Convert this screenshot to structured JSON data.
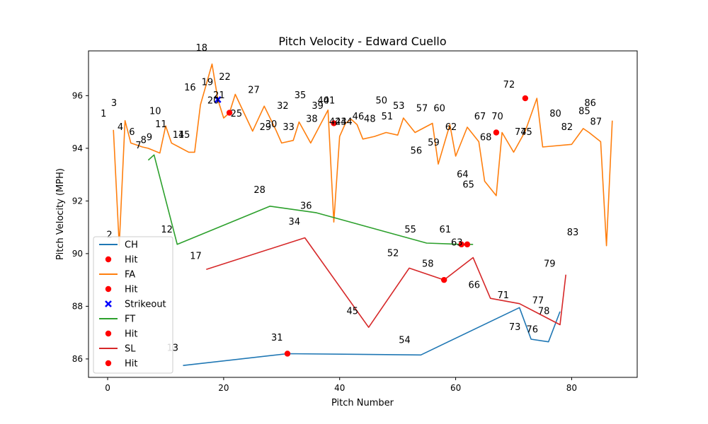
{
  "chart_data": {
    "type": "line",
    "title": "Pitch Velocity - Edward Cuello",
    "xlabel": "Pitch Number",
    "ylabel": "Pitch Velocity (MPH)",
    "xlim": [
      -3.3,
      91.3
    ],
    "ylim": [
      85.3,
      97.7
    ],
    "xticks": [
      0,
      20,
      40,
      60,
      80
    ],
    "yticks": [
      86,
      88,
      90,
      92,
      94,
      96
    ],
    "legend_position": "lower-left",
    "grid": false,
    "legend": [
      {
        "label": "CH",
        "kind": "line",
        "color": "#1f77b4"
      },
      {
        "label": "Hit",
        "kind": "dot",
        "color": "#ff0000"
      },
      {
        "label": "FA",
        "kind": "line",
        "color": "#ff7f0e"
      },
      {
        "label": "Hit",
        "kind": "dot",
        "color": "#ff0000"
      },
      {
        "label": "Strikeout",
        "kind": "x",
        "color": "#0000ff"
      },
      {
        "label": "FT",
        "kind": "line",
        "color": "#2ca02c"
      },
      {
        "label": "Hit",
        "kind": "dot",
        "color": "#ff0000"
      },
      {
        "label": "SL",
        "kind": "line",
        "color": "#d62728"
      },
      {
        "label": "Hit",
        "kind": "dot",
        "color": "#ff0000"
      }
    ],
    "series": [
      {
        "name": "CH",
        "color": "#1f77b4",
        "x": [
          13,
          31,
          54,
          71,
          73,
          76,
          78
        ],
        "y": [
          85.75,
          86.2,
          86.15,
          87.95,
          86.75,
          86.65,
          87.8
        ]
      },
      {
        "name": "FA",
        "color": "#ff7f0e",
        "x": [
          1,
          2,
          3,
          4,
          6,
          7,
          9,
          10,
          11,
          14,
          15,
          16,
          18,
          19,
          20,
          21,
          22,
          25,
          27,
          29,
          30,
          32,
          33,
          35,
          38,
          39,
          40,
          41,
          42,
          43,
          44,
          46,
          48,
          50,
          51,
          53,
          56,
          57,
          59,
          60,
          62,
          64,
          65,
          67,
          68,
          70,
          72,
          74,
          75,
          80,
          82,
          83,
          85,
          86,
          87
        ],
        "y": [
          94.7,
          90.3,
          95.05,
          94.2,
          94.05,
          94.0,
          93.82,
          94.85,
          94.2,
          93.85,
          93.85,
          95.65,
          97.2,
          95.85,
          95.15,
          95.35,
          96.05,
          94.65,
          95.6,
          94.7,
          94.2,
          94.3,
          95.0,
          94.2,
          95.45,
          91.2,
          94.45,
          94.95,
          95.1,
          94.9,
          94.35,
          94.45,
          94.6,
          94.5,
          95.15,
          94.6,
          94.95,
          93.4,
          94.9,
          93.7,
          94.8,
          94.25,
          92.75,
          92.2,
          94.6,
          93.85,
          94.65,
          95.9,
          94.05,
          94.15,
          94.75,
          94.6,
          94.25,
          90.3,
          95.05
        ]
      },
      {
        "name": "FT",
        "color": "#2ca02c",
        "x": [
          7,
          8,
          12,
          28,
          36,
          55,
          61,
          63
        ],
        "y": [
          93.55,
          93.75,
          90.35,
          91.8,
          91.55,
          90.4,
          90.35,
          90.35
        ]
      },
      {
        "name": "SL",
        "color": "#d62728",
        "x": [
          17,
          34,
          45,
          52,
          58,
          63,
          66,
          71,
          78,
          79
        ],
        "y": [
          89.4,
          90.6,
          87.2,
          89.45,
          89.0,
          89.85,
          88.3,
          88.1,
          87.3,
          89.2
        ]
      }
    ],
    "hits": [
      {
        "x": 21,
        "y": 95.35
      },
      {
        "x": 31,
        "y": 86.2
      },
      {
        "x": 39,
        "y": 94.95
      },
      {
        "x": 58,
        "y": 89.0
      },
      {
        "x": 61,
        "y": 90.35
      },
      {
        "x": 62,
        "y": 90.35
      },
      {
        "x": 67,
        "y": 94.6
      },
      {
        "x": 72,
        "y": 95.9
      }
    ],
    "strikeouts": [
      {
        "x": 19,
        "y": 95.85
      }
    ],
    "annotations": [
      {
        "text": "1",
        "x": -0.7,
        "y": 95.2
      },
      {
        "text": "2",
        "x": 0.3,
        "y": 90.6
      },
      {
        "text": "3",
        "x": 1.1,
        "y": 95.6
      },
      {
        "text": "4",
        "x": 2.2,
        "y": 94.7
      },
      {
        "text": "6",
        "x": 4.2,
        "y": 94.5
      },
      {
        "text": "7",
        "x": 5.3,
        "y": 94.0
      },
      {
        "text": "8",
        "x": 6.2,
        "y": 94.2
      },
      {
        "text": "9",
        "x": 7.2,
        "y": 94.3
      },
      {
        "text": "10",
        "x": 8.2,
        "y": 95.3
      },
      {
        "text": "11",
        "x": 9.2,
        "y": 94.8
      },
      {
        "text": "12",
        "x": 10.2,
        "y": 90.8
      },
      {
        "text": "13",
        "x": 11.2,
        "y": 86.3
      },
      {
        "text": "14",
        "x": 12.2,
        "y": 94.4
      },
      {
        "text": "15",
        "x": 13.2,
        "y": 94.4
      },
      {
        "text": "16",
        "x": 14.2,
        "y": 96.2
      },
      {
        "text": "17",
        "x": 15.2,
        "y": 89.8
      },
      {
        "text": "18",
        "x": 16.2,
        "y": 97.7
      },
      {
        "text": "19",
        "x": 17.2,
        "y": 96.4
      },
      {
        "text": "20",
        "x": 18.2,
        "y": 95.7
      },
      {
        "text": "21",
        "x": 19.2,
        "y": 95.9
      },
      {
        "text": "22",
        "x": 20.2,
        "y": 96.6
      },
      {
        "text": "25",
        "x": 22.2,
        "y": 95.2
      },
      {
        "text": "27",
        "x": 25.2,
        "y": 96.1
      },
      {
        "text": "28",
        "x": 26.2,
        "y": 92.3
      },
      {
        "text": "29",
        "x": 27.2,
        "y": 94.7
      },
      {
        "text": "30",
        "x": 28.2,
        "y": 94.8
      },
      {
        "text": "31",
        "x": 29.2,
        "y": 86.7
      },
      {
        "text": "32",
        "x": 30.2,
        "y": 95.5
      },
      {
        "text": "33",
        "x": 31.2,
        "y": 94.7
      },
      {
        "text": "34",
        "x": 32.2,
        "y": 91.1
      },
      {
        "text": "35",
        "x": 33.2,
        "y": 95.9
      },
      {
        "text": "36",
        "x": 34.2,
        "y": 91.7
      },
      {
        "text": "38",
        "x": 35.2,
        "y": 95.0
      },
      {
        "text": "39",
        "x": 36.2,
        "y": 95.5
      },
      {
        "text": "40",
        "x": 37.2,
        "y": 95.7
      },
      {
        "text": "41",
        "x": 38.2,
        "y": 95.7
      },
      {
        "text": "42",
        "x": 39.2,
        "y": 94.9
      },
      {
        "text": "43",
        "x": 40.2,
        "y": 94.9
      },
      {
        "text": "44",
        "x": 41.2,
        "y": 94.9
      },
      {
        "text": "45",
        "x": 42.2,
        "y": 87.7
      },
      {
        "text": "46",
        "x": 43.2,
        "y": 95.1
      },
      {
        "text": "48",
        "x": 45.2,
        "y": 95.0
      },
      {
        "text": "50",
        "x": 47.2,
        "y": 95.7
      },
      {
        "text": "51",
        "x": 48.2,
        "y": 95.1
      },
      {
        "text": "52",
        "x": 49.2,
        "y": 89.9
      },
      {
        "text": "53",
        "x": 50.2,
        "y": 95.5
      },
      {
        "text": "54",
        "x": 51.2,
        "y": 86.6
      },
      {
        "text": "55",
        "x": 52.2,
        "y": 90.8
      },
      {
        "text": "56",
        "x": 53.2,
        "y": 93.8
      },
      {
        "text": "57",
        "x": 54.2,
        "y": 95.4
      },
      {
        "text": "58",
        "x": 55.2,
        "y": 89.5
      },
      {
        "text": "59",
        "x": 56.2,
        "y": 94.1
      },
      {
        "text": "60",
        "x": 57.2,
        "y": 95.4
      },
      {
        "text": "61",
        "x": 58.2,
        "y": 90.8
      },
      {
        "text": "62",
        "x": 59.2,
        "y": 94.7
      },
      {
        "text": "63",
        "x": 60.2,
        "y": 90.3
      },
      {
        "text": "64",
        "x": 61.2,
        "y": 92.9
      },
      {
        "text": "65",
        "x": 62.2,
        "y": 92.5
      },
      {
        "text": "66",
        "x": 63.2,
        "y": 88.7
      },
      {
        "text": "67",
        "x": 64.2,
        "y": 95.1
      },
      {
        "text": "68",
        "x": 65.2,
        "y": 94.3
      },
      {
        "text": "70",
        "x": 67.2,
        "y": 95.1
      },
      {
        "text": "71",
        "x": 68.2,
        "y": 88.3
      },
      {
        "text": "72",
        "x": 69.2,
        "y": 96.3
      },
      {
        "text": "73",
        "x": 70.2,
        "y": 87.1
      },
      {
        "text": "74",
        "x": 71.2,
        "y": 94.5
      },
      {
        "text": "75",
        "x": 72.2,
        "y": 94.5
      },
      {
        "text": "76",
        "x": 73.2,
        "y": 87.0
      },
      {
        "text": "77",
        "x": 74.2,
        "y": 88.1
      },
      {
        "text": "78",
        "x": 75.2,
        "y": 87.7
      },
      {
        "text": "79",
        "x": 76.2,
        "y": 89.5
      },
      {
        "text": "80",
        "x": 77.2,
        "y": 95.2
      },
      {
        "text": "82",
        "x": 79.2,
        "y": 94.7
      },
      {
        "text": "83",
        "x": 80.2,
        "y": 90.7
      },
      {
        "text": "85",
        "x": 82.2,
        "y": 95.3
      },
      {
        "text": "86",
        "x": 83.2,
        "y": 95.6
      },
      {
        "text": "87",
        "x": 84.2,
        "y": 94.9
      }
    ]
  }
}
